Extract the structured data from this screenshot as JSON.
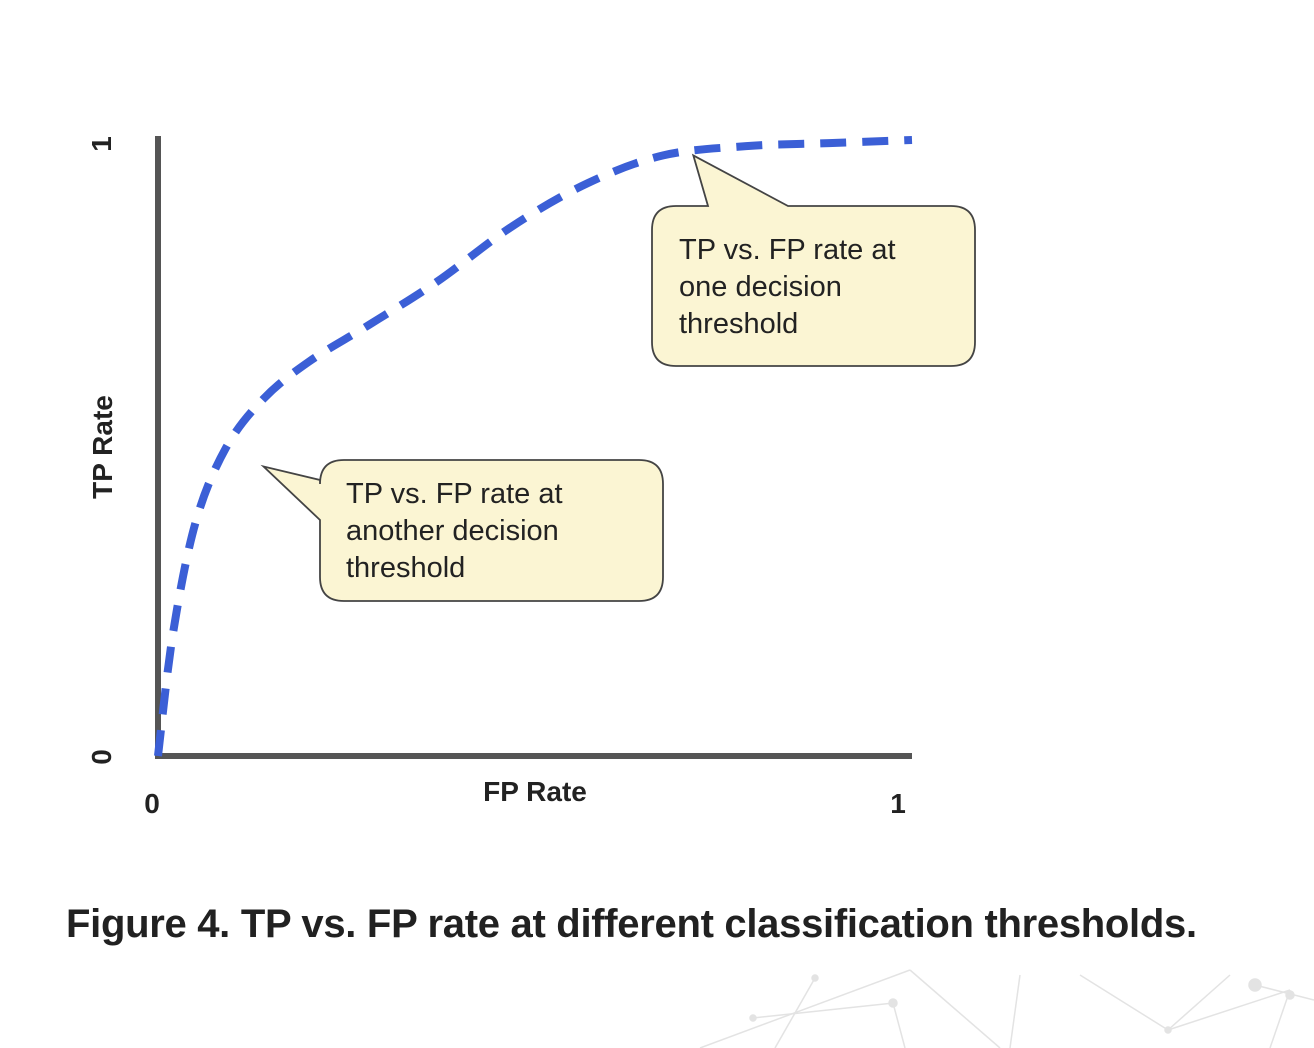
{
  "chart_data": {
    "type": "line",
    "title": "",
    "xlabel": "FP Rate",
    "ylabel": "TP Rate",
    "xlim": [
      0,
      1
    ],
    "ylim": [
      0,
      1
    ],
    "x_ticks": [
      "0",
      "1"
    ],
    "y_ticks": [
      "0",
      "1"
    ],
    "grid": false,
    "series": [
      {
        "name": "",
        "style": "dashed",
        "color": "#3b5fd6",
        "x": [
          0,
          0.02,
          0.05,
          0.09,
          0.14,
          0.2,
          0.28,
          0.37,
          0.47,
          0.57,
          0.67,
          0.78,
          0.89,
          1.0
        ],
        "y": [
          0,
          0.2,
          0.38,
          0.5,
          0.58,
          0.64,
          0.7,
          0.77,
          0.86,
          0.93,
          0.975,
          0.99,
          0.995,
          1.0
        ]
      }
    ],
    "annotations": [
      {
        "text_lines": [
          "TP vs. FP rate at",
          "one decision",
          "threshold"
        ],
        "point": [
          0.71,
          0.975
        ]
      },
      {
        "text_lines": [
          "TP vs. FP rate at",
          "another decision",
          "threshold"
        ],
        "point": [
          0.14,
          0.47
        ]
      }
    ]
  },
  "caption": "Figure 4. TP vs. FP rate at different classification thresholds.",
  "colors": {
    "axis": "#555555",
    "curve": "#3b5fd6",
    "callout_fill": "#fbf5d3",
    "callout_stroke": "#444444"
  }
}
